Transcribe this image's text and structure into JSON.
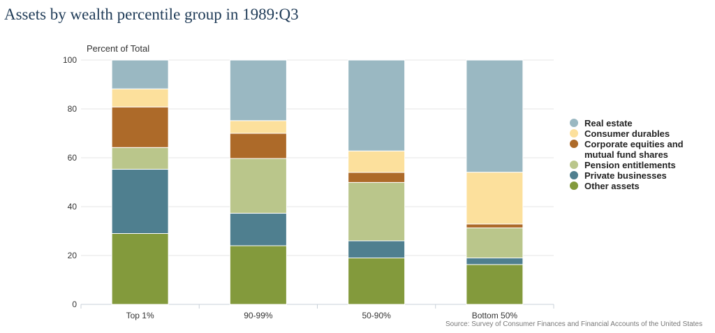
{
  "chart_data": {
    "type": "bar",
    "stacked": true,
    "title": "Assets by wealth percentile group in 1989:Q3",
    "ylabel": "Percent of Total",
    "ylim": [
      0,
      100
    ],
    "yticks": [
      0,
      20,
      40,
      60,
      80,
      100
    ],
    "grid": true,
    "legend_position": "right",
    "categories": [
      "Top 1%",
      "90-99%",
      "50-90%",
      "Bottom 50%"
    ],
    "series": [
      {
        "name": "Other assets",
        "color": "#839a3c",
        "values": [
          29.0,
          24.0,
          19.0,
          16.3
        ]
      },
      {
        "name": "Private businesses",
        "color": "#4f7f8f",
        "values": [
          26.3,
          13.3,
          7.0,
          2.7
        ]
      },
      {
        "name": "Pension entitlements",
        "color": "#bac68b",
        "values": [
          8.9,
          22.4,
          23.9,
          12.3
        ]
      },
      {
        "name": "Corporate equities and mutual fund shares",
        "legend_lines": [
          "Corporate equities and",
          "mutual fund shares"
        ],
        "color": "#ad6a29",
        "values": [
          16.6,
          10.3,
          4.1,
          1.6
        ]
      },
      {
        "name": "Consumer durables",
        "color": "#fce09c",
        "values": [
          7.4,
          5.2,
          8.8,
          21.2
        ]
      },
      {
        "name": "Real estate",
        "color": "#9ab8c2",
        "values": [
          11.8,
          24.8,
          37.2,
          45.9
        ]
      }
    ],
    "legend_order": [
      5,
      4,
      3,
      2,
      1,
      0
    ],
    "source": "Source: Survey of Consumer Finances and Financial Accounts of the United States"
  }
}
